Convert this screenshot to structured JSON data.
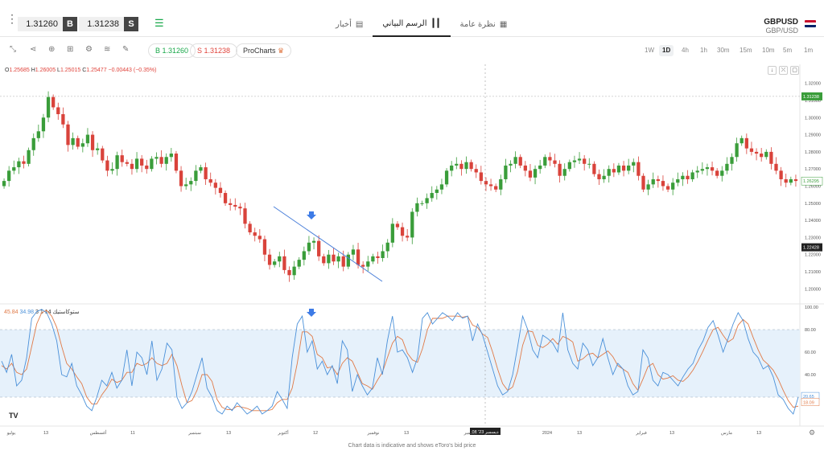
{
  "trade_bar": {
    "buy_price": "1.31260",
    "buy_tag": "B",
    "sell_price": "1.31238",
    "sell_tag": "S"
  },
  "tabs": [
    {
      "label": "أخبار",
      "icon": "news-icon"
    },
    {
      "label": "الرسم البياني",
      "icon": "candles-icon",
      "active": true
    },
    {
      "label": "نظرة عامة",
      "icon": "grid-icon"
    }
  ],
  "symbol": {
    "name": "GBPUSD",
    "pair": "GBP/USD"
  },
  "toolbar": {
    "buy_pill": "B 1.31260",
    "sell_pill": "S 1.31238",
    "prochart_label": "ProCharts",
    "timeframes": [
      "1W",
      "1D",
      "4h",
      "1h",
      "30m",
      "15m",
      "10m",
      "5m",
      "1m"
    ],
    "active_timeframe": "1D"
  },
  "ohlc": {
    "o_label": "O",
    "o": "1.25685",
    "h_label": "H",
    "h": "1.26005",
    "l_label": "L",
    "l": "1.25015",
    "c_label": "C",
    "c": "1.25477",
    "change": "−0.00443 (−0.35%)"
  },
  "stochastic": {
    "name": "ستوكاستيك",
    "params": "14 1 3",
    "k": "34.98",
    "d": "45.84"
  },
  "footer_note": "Chart data is indicative and shows eToro's bid price",
  "colors": {
    "up": "#3a9d3a",
    "down": "#d9433b",
    "k_line": "#4a90d9",
    "d_line": "#e07a47",
    "band": "#e6f1fb"
  },
  "chart_data": {
    "type": "candlestick",
    "price_axis": {
      "ticks": [
        "1.32000",
        "1.31000",
        "1.30000",
        "1.29000",
        "1.28000",
        "1.27000",
        "1.26000",
        "1.25000",
        "1.24000",
        "1.23000",
        "1.22000",
        "1.21000",
        "1.20000"
      ],
      "range": [
        1.195,
        1.325
      ],
      "current_bid": "1.31238",
      "last_close": "1.26295",
      "crosshair": "1.22428"
    },
    "osc_axis": {
      "ticks": [
        "100.00",
        "80.00",
        "60.00",
        "40.00",
        "20.00"
      ],
      "range": [
        0,
        100
      ],
      "band": [
        20,
        80
      ],
      "k_last": "20.65",
      "d_last": "18.09"
    },
    "x_labels": [
      "يوليو",
      "13",
      "أغسطس",
      "11",
      "سبتمبر",
      "13",
      "أكتوبر",
      "12",
      "نوفمبر",
      "13",
      "ديسمبر",
      "2024",
      "13",
      "فبراير",
      "13",
      "مارس",
      "13"
    ],
    "crosshair_x_label": "08 '23 ديسمبر",
    "closes": [
      1.263,
      1.269,
      1.271,
      1.2745,
      1.273,
      1.281,
      1.288,
      1.292,
      1.3,
      1.312,
      1.306,
      1.302,
      1.296,
      1.284,
      1.288,
      1.283,
      1.285,
      1.29,
      1.281,
      1.282,
      1.275,
      1.269,
      1.27,
      1.278,
      1.274,
      1.273,
      1.27,
      1.276,
      1.272,
      1.27,
      1.276,
      1.277,
      1.273,
      1.277,
      1.279,
      1.269,
      1.26,
      1.261,
      1.263,
      1.269,
      1.271,
      1.264,
      1.262,
      1.259,
      1.256,
      1.25,
      1.249,
      1.248,
      1.247,
      1.238,
      1.233,
      1.231,
      1.229,
      1.22,
      1.214,
      1.216,
      1.219,
      1.211,
      1.208,
      1.213,
      1.217,
      1.222,
      1.227,
      1.228,
      1.219,
      1.215,
      1.22,
      1.216,
      1.219,
      1.213,
      1.22,
      1.223,
      1.214,
      1.213,
      1.216,
      1.219,
      1.218,
      1.222,
      1.227,
      1.238,
      1.236,
      1.231,
      1.23,
      1.245,
      1.25,
      1.25,
      1.253,
      1.256,
      1.258,
      1.261,
      1.269,
      1.272,
      1.273,
      1.27,
      1.274,
      1.27,
      1.268,
      1.263,
      1.261,
      1.26,
      1.258,
      1.264,
      1.272,
      1.273,
      1.277,
      1.272,
      1.269,
      1.265,
      1.27,
      1.272,
      1.277,
      1.275,
      1.273,
      1.266,
      1.27,
      1.274,
      1.275,
      1.276,
      1.273,
      1.273,
      1.267,
      1.264,
      1.266,
      1.27,
      1.268,
      1.272,
      1.269,
      1.272,
      1.274,
      1.266,
      1.258,
      1.261,
      1.264,
      1.263,
      1.26,
      1.258,
      1.262,
      1.264,
      1.266,
      1.264,
      1.268,
      1.269,
      1.27,
      1.271,
      1.269,
      1.266,
      1.269,
      1.273,
      1.277,
      1.285,
      1.288,
      1.282,
      1.28,
      1.279,
      1.277,
      1.28,
      1.273,
      1.269,
      1.264,
      1.262,
      1.264,
      1.263
    ],
    "stoch_k": [
      52,
      42,
      58,
      30,
      35,
      55,
      90,
      96,
      98,
      95,
      85,
      70,
      40,
      38,
      50,
      30,
      22,
      12,
      8,
      20,
      35,
      30,
      42,
      28,
      35,
      62,
      30,
      60,
      55,
      40,
      70,
      35,
      45,
      68,
      62,
      20,
      10,
      15,
      25,
      40,
      55,
      28,
      20,
      8,
      5,
      12,
      8,
      15,
      10,
      5,
      8,
      12,
      5,
      8,
      12,
      25,
      18,
      10,
      55,
      85,
      92,
      60,
      70,
      45,
      52,
      40,
      48,
      32,
      70,
      62,
      25,
      40,
      30,
      22,
      28,
      55,
      40,
      70,
      92,
      60,
      62,
      55,
      42,
      55,
      90,
      95,
      85,
      90,
      95,
      92,
      88,
      95,
      90,
      92,
      70,
      85,
      75,
      60,
      45,
      30,
      22,
      25,
      40,
      65,
      92,
      80,
      62,
      55,
      75,
      72,
      68,
      60,
      95,
      62,
      50,
      45,
      68,
      62,
      48,
      55,
      72,
      55,
      40,
      50,
      45,
      30,
      22,
      25,
      62,
      55,
      35,
      30,
      42,
      40,
      35,
      30,
      38,
      45,
      50,
      62,
      70,
      82,
      88,
      75,
      60,
      72,
      85,
      95,
      88,
      72,
      60,
      55,
      45,
      48,
      38,
      22,
      18,
      10,
      5,
      20
    ],
    "stoch_d": [
      48,
      45,
      50,
      42,
      40,
      45,
      65,
      85,
      95,
      97,
      92,
      82,
      65,
      50,
      45,
      38,
      32,
      20,
      14,
      14,
      22,
      28,
      36,
      33,
      35,
      42,
      42,
      50,
      48,
      50,
      55,
      50,
      48,
      50,
      58,
      48,
      30,
      15,
      17,
      26,
      40,
      40,
      34,
      18,
      11,
      9,
      9,
      12,
      11,
      10,
      8,
      8,
      8,
      8,
      9,
      15,
      18,
      18,
      28,
      50,
      78,
      78,
      74,
      58,
      55,
      46,
      47,
      40,
      50,
      55,
      52,
      42,
      32,
      30,
      27,
      35,
      42,
      55,
      68,
      74,
      71,
      59,
      53,
      51,
      63,
      80,
      90,
      90,
      90,
      92,
      92,
      92,
      91,
      92,
      84,
      82,
      76,
      73,
      60,
      45,
      32,
      26,
      29,
      43,
      66,
      79,
      78,
      66,
      64,
      67,
      72,
      67,
      74,
      72,
      69,
      52,
      54,
      58,
      59,
      55,
      58,
      61,
      56,
      48,
      45,
      42,
      32,
      26,
      36,
      47,
      50,
      40,
      36,
      37,
      39,
      35,
      34,
      38,
      44,
      52,
      61,
      71,
      80,
      82,
      75,
      69,
      72,
      84,
      89,
      85,
      73,
      62,
      53,
      49,
      44,
      36,
      26,
      17,
      11,
      12
    ]
  }
}
